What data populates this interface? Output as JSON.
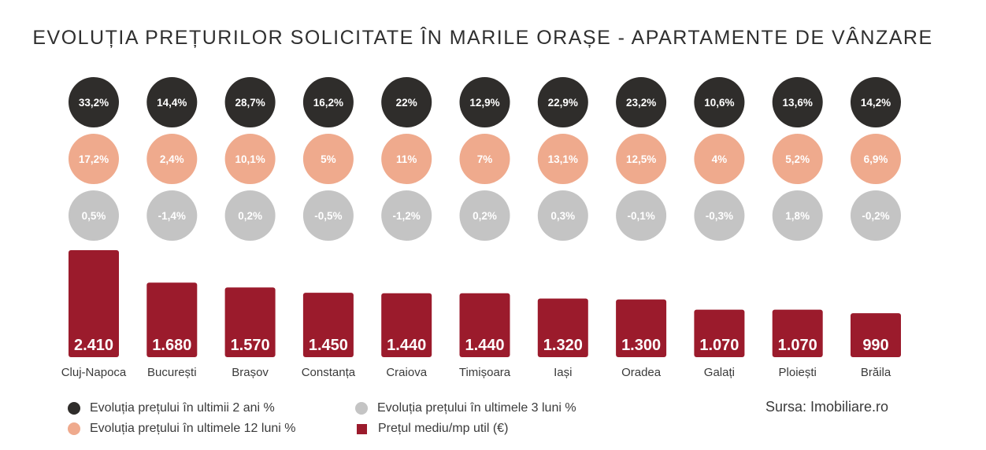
{
  "title": "EVOLUȚIA PREȚURILOR SOLICITATE ÎN MARILE ORAȘE - APARTAMENTE DE VÂNZARE",
  "source": "Sursa: Imobiliare.ro",
  "colors": {
    "two_years": "#2f2d2b",
    "twelve_months": "#efaa8d",
    "three_months": "#c4c4c4",
    "price": "#9b1b2c"
  },
  "legend": {
    "two_years": "Evoluția prețului în ultimii 2 ani %",
    "twelve_months": "Evoluția prețului în ultimele 12 luni %",
    "three_months": "Evoluția prețului în ultimele 3 luni %",
    "price": "Prețul mediu/mp util (€)"
  },
  "chart_data": {
    "type": "bar",
    "categories": [
      "Cluj-Napoca",
      "București",
      "Brașov",
      "Constanța",
      "Craiova",
      "Timișoara",
      "Iași",
      "Oradea",
      "Galați",
      "Ploiești",
      "Brăila"
    ],
    "series": [
      {
        "name": "Prețul mediu/mp util (€)",
        "values": [
          2410,
          1680,
          1570,
          1450,
          1440,
          1440,
          1320,
          1300,
          1070,
          1070,
          990
        ],
        "labels": [
          "2.410",
          "1.680",
          "1.570",
          "1.450",
          "1.440",
          "1.440",
          "1.320",
          "1.300",
          "1.070",
          "1.070",
          "990"
        ]
      },
      {
        "name": "Evoluția prețului în ultimii 2 ani %",
        "values": [
          33.2,
          14.4,
          28.7,
          16.2,
          22,
          12.9,
          22.9,
          23.2,
          10.6,
          13.6,
          14.2
        ],
        "labels": [
          "33,2%",
          "14,4%",
          "28,7%",
          "16,2%",
          "22%",
          "12,9%",
          "22,9%",
          "23,2%",
          "10,6%",
          "13,6%",
          "14,2%"
        ]
      },
      {
        "name": "Evoluția prețului în ultimele 12 luni %",
        "values": [
          17.2,
          2.4,
          10.1,
          5,
          11,
          7,
          13.1,
          12.5,
          4,
          5.2,
          6.9
        ],
        "labels": [
          "17,2%",
          "2,4%",
          "10,1%",
          "5%",
          "11%",
          "7%",
          "13,1%",
          "12,5%",
          "4%",
          "5,2%",
          "6,9%"
        ]
      },
      {
        "name": "Evoluția prețului în ultimele 3 luni %",
        "values": [
          0.5,
          -1.4,
          0.2,
          -0.5,
          -1.2,
          0.2,
          0.3,
          -0.1,
          -0.3,
          1.8,
          -0.2
        ],
        "labels": [
          "0,5%",
          "-1,4%",
          "0,2%",
          "-0,5%",
          "-1,2%",
          "0,2%",
          "0,3%",
          "-0,1%",
          "-0,3%",
          "1,8%",
          "-0,2%"
        ]
      }
    ],
    "legend_position": "bottom",
    "grid": false
  }
}
